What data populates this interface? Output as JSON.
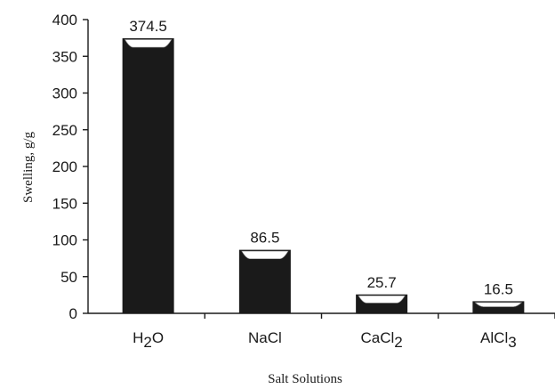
{
  "chart_data": {
    "type": "bar",
    "title": "",
    "xlabel": "Salt Solutions",
    "ylabel": "Swelling, g/g",
    "ylim": [
      0,
      400
    ],
    "yticks": [
      0,
      50,
      100,
      150,
      200,
      250,
      300,
      350,
      400
    ],
    "categories": [
      {
        "base": "H",
        "sub": "2",
        "rest": "O"
      },
      {
        "base": "NaCl",
        "sub": "",
        "rest": ""
      },
      {
        "base": "CaCl",
        "sub": "2",
        "rest": ""
      },
      {
        "base": "AlCl",
        "sub": "3",
        "rest": ""
      }
    ],
    "values": [
      374.5,
      86.5,
      25.7,
      16.5
    ],
    "data_labels": [
      "374.5",
      "86.5",
      "25.7",
      "16.5"
    ],
    "grid": false,
    "legend": "none",
    "bar_color": "#1a1a1a"
  }
}
